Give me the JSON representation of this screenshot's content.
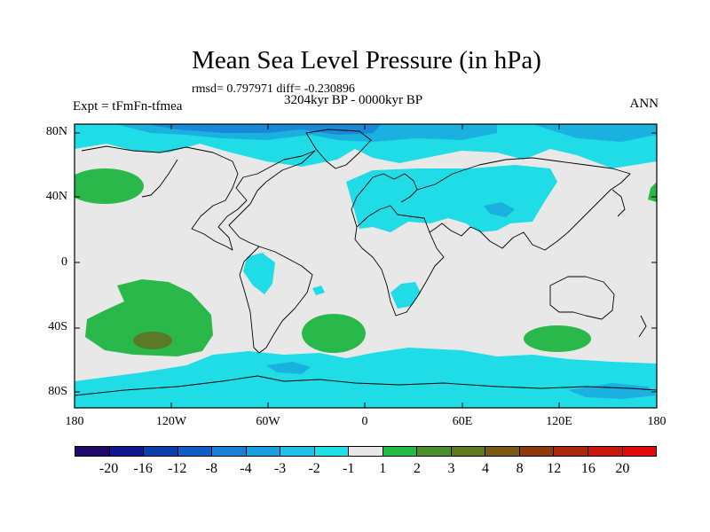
{
  "title": "Mean Sea Level Pressure (in hPa)",
  "stats": "rmsd= 0.797971 diff= -0.230896",
  "period": "3204kyr BP - 0000kyr BP",
  "experiment": "Expt = tFmFn-tfmea",
  "season": "ANN",
  "lat_labels": [
    "80N",
    "40N",
    "0",
    "40S",
    "80S"
  ],
  "lon_labels": [
    "180",
    "120W",
    "60W",
    "0",
    "60E",
    "120E",
    "180"
  ],
  "colorbar": {
    "colors": [
      "#1f0a6b",
      "#0d1a8f",
      "#0a3ea8",
      "#0f5ec4",
      "#1a7fd6",
      "#1aa0e0",
      "#20c0e8",
      "#20e0e8",
      "#e8e8e8",
      "#22bb44",
      "#4a8f2a",
      "#5e7a1a",
      "#7a5a10",
      "#8f3a0a",
      "#a82a0a",
      "#c81a0a",
      "#e00a0a"
    ],
    "labels": [
      "-20",
      "-16",
      "-12",
      "-8",
      "-4",
      "-3",
      "-2",
      "-1",
      "1",
      "2",
      "3",
      "4",
      "8",
      "12",
      "16",
      "20"
    ]
  },
  "colors": {
    "background_field": "#e8e8e8",
    "light_cyan": "#20dce6",
    "mid_blue": "#1ab0e0",
    "deeper_blue": "#1a88d8",
    "green": "#2ab84a",
    "dark_green": "#5a7a2a"
  }
}
